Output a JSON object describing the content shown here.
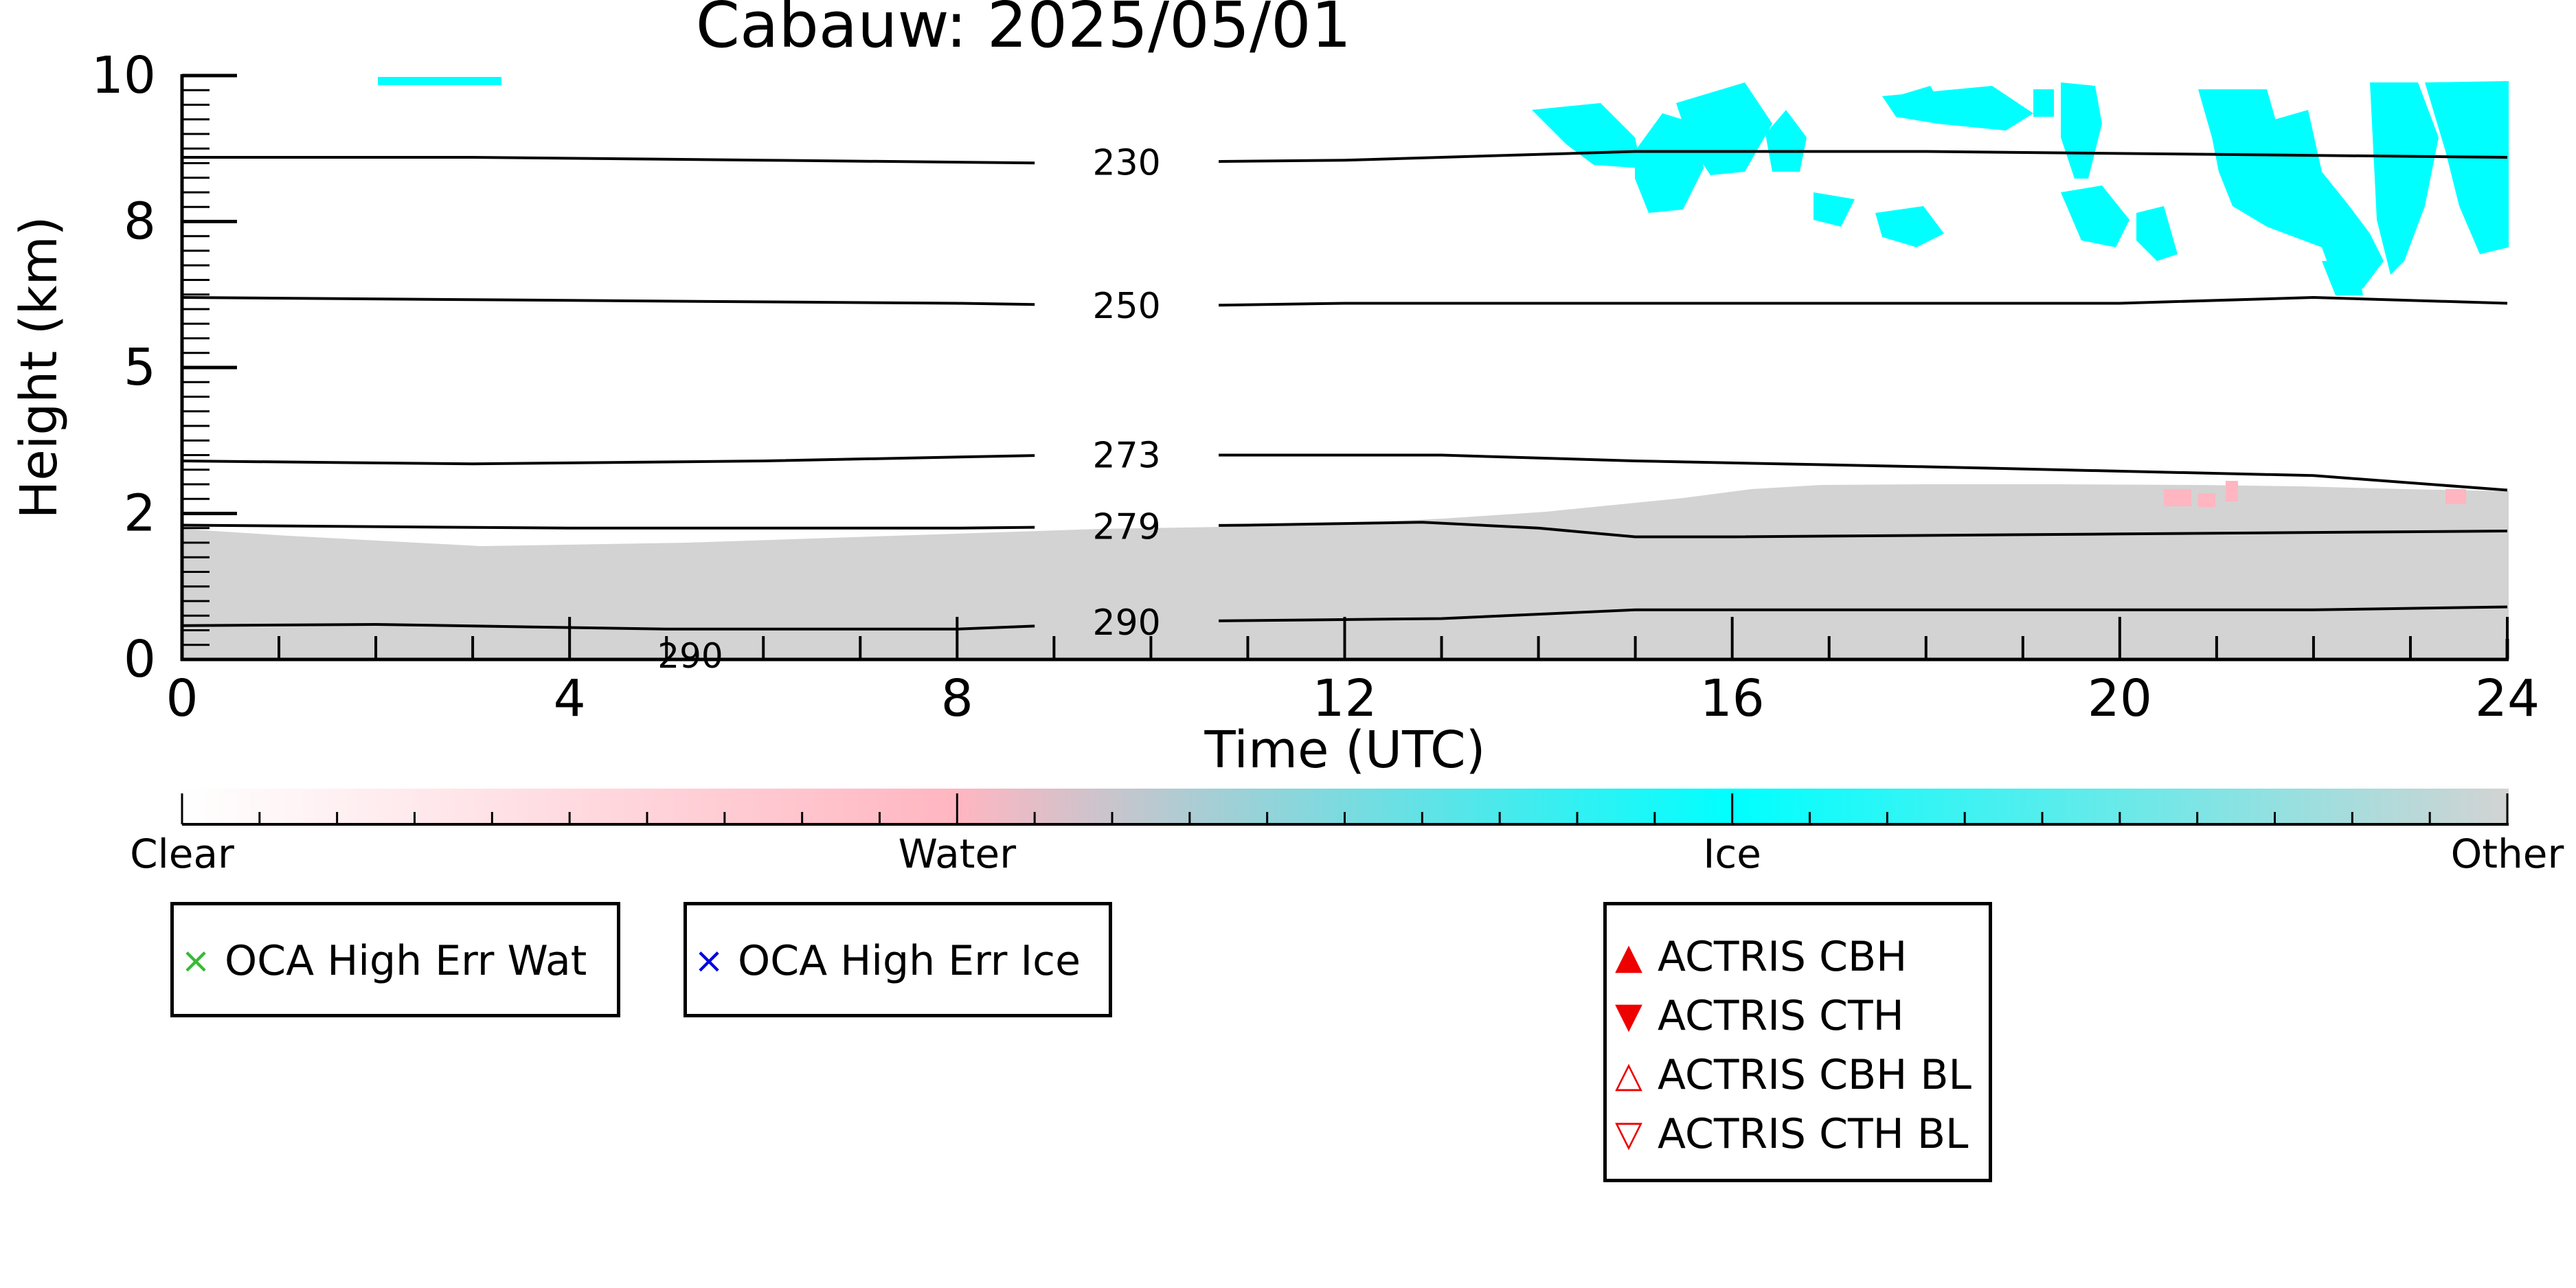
{
  "chart_data": {
    "type": "heatmap",
    "title": "Cabauw: 2025/05/01",
    "xlabel": "Time (UTC)",
    "ylabel": "Height (km)",
    "xlim": [
      0,
      24
    ],
    "ylim": [
      0,
      10
    ],
    "x_ticks": [
      "0",
      "4",
      "8",
      "12",
      "16",
      "20",
      "24"
    ],
    "x_tick_values": [
      0,
      4,
      8,
      12,
      16,
      20,
      24
    ],
    "y_ticks": [
      "0",
      "2",
      "5",
      "8",
      "10"
    ],
    "y_tick_values": [
      0,
      2.5,
      5,
      7.5,
      10
    ],
    "categories": [
      "Clear",
      "Water",
      "Ice",
      "Other"
    ],
    "category_colors": {
      "Clear": "#ffffff",
      "Water": "#ffb6c1",
      "Ice": "#00ffff",
      "Other": "#d3d3d3"
    },
    "temperature_contours": [
      {
        "label": "230",
        "points": [
          [
            0,
            8.6
          ],
          [
            3,
            8.6
          ],
          [
            6,
            8.55
          ],
          [
            9,
            8.5
          ],
          [
            12,
            8.55
          ],
          [
            13,
            8.6
          ],
          [
            15,
            8.7
          ],
          [
            18,
            8.7
          ],
          [
            21,
            8.65
          ],
          [
            24,
            8.6
          ]
        ]
      },
      {
        "label": "250",
        "points": [
          [
            0,
            6.2
          ],
          [
            4,
            6.15
          ],
          [
            8,
            6.1
          ],
          [
            10,
            6.05
          ],
          [
            12,
            6.1
          ],
          [
            16,
            6.1
          ],
          [
            20,
            6.1
          ],
          [
            22,
            6.2
          ],
          [
            24,
            6.1
          ]
        ]
      },
      {
        "label": "273",
        "points": [
          [
            0,
            3.4
          ],
          [
            3,
            3.35
          ],
          [
            6,
            3.4
          ],
          [
            9,
            3.5
          ],
          [
            10,
            3.5
          ],
          [
            13,
            3.5
          ],
          [
            15,
            3.4
          ],
          [
            18,
            3.3
          ],
          [
            22,
            3.15
          ],
          [
            24,
            2.9
          ]
        ]
      },
      {
        "label": "279",
        "points": [
          [
            0,
            2.3
          ],
          [
            4,
            2.25
          ],
          [
            8,
            2.25
          ],
          [
            11,
            2.3
          ],
          [
            12.8,
            2.35
          ],
          [
            14,
            2.25
          ],
          [
            15,
            2.1
          ],
          [
            16,
            2.1
          ],
          [
            20,
            2.15
          ],
          [
            24,
            2.2
          ]
        ]
      },
      {
        "label": "290",
        "points": [
          [
            0,
            0.58
          ],
          [
            2,
            0.6
          ],
          [
            5,
            0.52
          ],
          [
            8,
            0.52
          ],
          [
            10,
            0.65
          ],
          [
            13,
            0.7
          ],
          [
            15,
            0.85
          ],
          [
            18,
            0.85
          ],
          [
            22,
            0.85
          ],
          [
            24,
            0.9
          ]
        ]
      }
    ],
    "partial_contour_label": "290",
    "legend_cloudnet": [
      {
        "label": "OCA High Err Wat",
        "symbol": "×",
        "color": "#33bb33"
      },
      {
        "label": "OCA High Err Ice",
        "symbol": "×",
        "color": "#0000dd"
      }
    ],
    "legend_actris": [
      {
        "label": "ACTRIS CBH",
        "symbol": "▲",
        "color": "#ee0000"
      },
      {
        "label": "ACTRIS CTH",
        "symbol": "▼",
        "color": "#ee0000"
      },
      {
        "label": "ACTRIS CBH BL",
        "symbol": "△",
        "color": "#ee0000"
      },
      {
        "label": "ACTRIS CTH BL",
        "symbol": "▽",
        "color": "#ee0000"
      }
    ]
  }
}
